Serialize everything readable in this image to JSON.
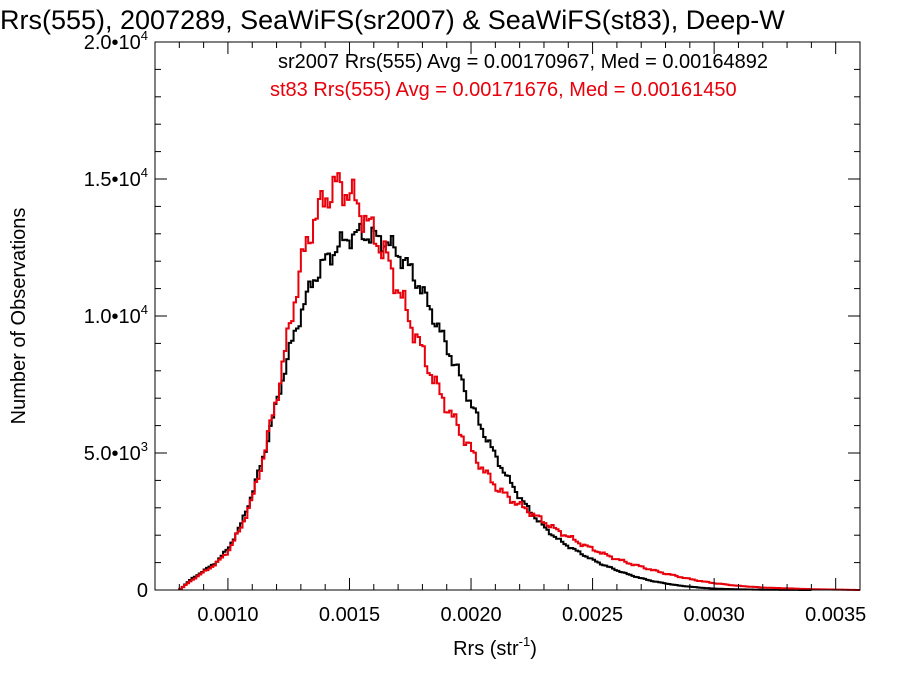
{
  "chart_data": {
    "type": "histogram",
    "title": "Rrs(555), 2007289, SeaWiFS(sr2007) & SeaWiFS(st83), Deep-W",
    "xlabel_main": "Rrs (str",
    "xlabel_sup": "-1",
    "xlabel_close": ")",
    "ylabel": "Number of Observations",
    "xlim": [
      0.0007,
      0.0036
    ],
    "ylim": [
      0,
      20000
    ],
    "x_ticks": [
      {
        "value": 0.001,
        "label": "0.0010"
      },
      {
        "value": 0.0015,
        "label": "0.0015"
      },
      {
        "value": 0.002,
        "label": "0.0020"
      },
      {
        "value": 0.0025,
        "label": "0.0025"
      },
      {
        "value": 0.003,
        "label": "0.0030"
      },
      {
        "value": 0.0035,
        "label": "0.0035"
      }
    ],
    "y_ticks": [
      {
        "value": 0,
        "mant": "0",
        "exp": ""
      },
      {
        "value": 5000,
        "mant": "5.0•10",
        "exp": "3"
      },
      {
        "value": 10000,
        "mant": "1.0•10",
        "exp": "4"
      },
      {
        "value": 15000,
        "mant": "1.5•10",
        "exp": "4"
      },
      {
        "value": 20000,
        "mant": "2.0•10",
        "exp": "4"
      }
    ],
    "annotations": [
      {
        "text": "sr2007 Rrs(555) Avg = 0.00170967, Med = 0.00164892",
        "color": "#000000"
      },
      {
        "text": "st83 Rrs(555) Avg = 0.00171676, Med = 0.00161450",
        "color": "#e8000b"
      }
    ],
    "series": [
      {
        "name": "sr2007",
        "color": "#000000",
        "points": [
          [
            0.0008,
            0
          ],
          [
            0.00085,
            400
          ],
          [
            0.0009,
            700
          ],
          [
            0.00095,
            1000
          ],
          [
            0.001,
            1500
          ],
          [
            0.00105,
            2300
          ],
          [
            0.0011,
            3500
          ],
          [
            0.00115,
            5000
          ],
          [
            0.0012,
            6800
          ],
          [
            0.00125,
            8600
          ],
          [
            0.0013,
            10100
          ],
          [
            0.00135,
            11300
          ],
          [
            0.0014,
            12000
          ],
          [
            0.00145,
            12500
          ],
          [
            0.0015,
            12900
          ],
          [
            0.00155,
            13000
          ],
          [
            0.0016,
            12900
          ],
          [
            0.00165,
            12700
          ],
          [
            0.0017,
            12300
          ],
          [
            0.00175,
            11700
          ],
          [
            0.0018,
            10900
          ],
          [
            0.00185,
            9900
          ],
          [
            0.0019,
            8900
          ],
          [
            0.00195,
            7900
          ],
          [
            0.002,
            6800
          ],
          [
            0.00205,
            5800
          ],
          [
            0.0021,
            4900
          ],
          [
            0.00215,
            4100
          ],
          [
            0.0022,
            3400
          ],
          [
            0.00225,
            2800
          ],
          [
            0.0023,
            2300
          ],
          [
            0.00235,
            1900
          ],
          [
            0.0024,
            1600
          ],
          [
            0.00245,
            1350
          ],
          [
            0.0025,
            1100
          ],
          [
            0.00255,
            900
          ],
          [
            0.0026,
            720
          ],
          [
            0.00265,
            560
          ],
          [
            0.0027,
            430
          ],
          [
            0.00275,
            320
          ],
          [
            0.0028,
            240
          ],
          [
            0.00285,
            170
          ],
          [
            0.0029,
            120
          ],
          [
            0.00295,
            80
          ],
          [
            0.003,
            50
          ],
          [
            0.0031,
            25
          ],
          [
            0.0032,
            10
          ],
          [
            0.0034,
            0
          ]
        ]
      },
      {
        "name": "st83",
        "color": "#e8000b",
        "points": [
          [
            0.0008,
            0
          ],
          [
            0.00085,
            350
          ],
          [
            0.0009,
            650
          ],
          [
            0.00095,
            950
          ],
          [
            0.001,
            1400
          ],
          [
            0.00105,
            2200
          ],
          [
            0.0011,
            3300
          ],
          [
            0.00115,
            5000
          ],
          [
            0.0012,
            7000
          ],
          [
            0.00125,
            9400
          ],
          [
            0.0013,
            11800
          ],
          [
            0.00135,
            13400
          ],
          [
            0.0014,
            14300
          ],
          [
            0.00145,
            14800
          ],
          [
            0.0015,
            14500
          ],
          [
            0.00155,
            13800
          ],
          [
            0.0016,
            13000
          ],
          [
            0.00165,
            12200
          ],
          [
            0.0017,
            11000
          ],
          [
            0.00175,
            9800
          ],
          [
            0.0018,
            8700
          ],
          [
            0.00185,
            7600
          ],
          [
            0.0019,
            6700
          ],
          [
            0.00195,
            5900
          ],
          [
            0.002,
            5100
          ],
          [
            0.00205,
            4400
          ],
          [
            0.0021,
            3800
          ],
          [
            0.00215,
            3400
          ],
          [
            0.0022,
            3100
          ],
          [
            0.00225,
            2800
          ],
          [
            0.0023,
            2500
          ],
          [
            0.00235,
            2200
          ],
          [
            0.0024,
            1950
          ],
          [
            0.00245,
            1700
          ],
          [
            0.0025,
            1500
          ],
          [
            0.00255,
            1300
          ],
          [
            0.0026,
            1130
          ],
          [
            0.00265,
            980
          ],
          [
            0.0027,
            850
          ],
          [
            0.00275,
            720
          ],
          [
            0.0028,
            600
          ],
          [
            0.00285,
            500
          ],
          [
            0.0029,
            400
          ],
          [
            0.00295,
            320
          ],
          [
            0.003,
            250
          ],
          [
            0.0031,
            150
          ],
          [
            0.0032,
            90
          ],
          [
            0.0033,
            60
          ],
          [
            0.0034,
            30
          ],
          [
            0.0036,
            0
          ]
        ]
      }
    ]
  }
}
